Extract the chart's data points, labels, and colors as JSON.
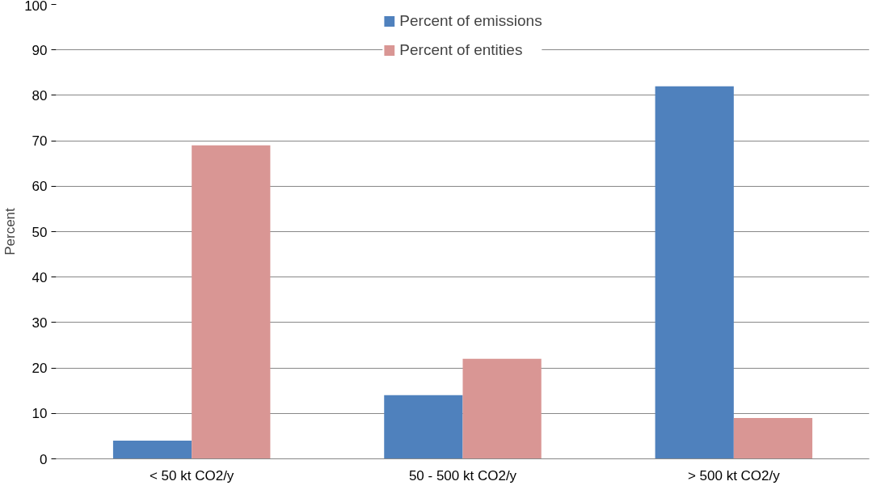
{
  "chart_data": {
    "type": "bar",
    "ylabel": "Percent",
    "categories": [
      "< 50 kt CO2/y",
      "50 - 500 kt CO2/y",
      "> 500 kt CO2/y"
    ],
    "series": [
      {
        "name": "Percent of emissions",
        "color": "#4f81bd",
        "values": [
          4,
          14,
          82
        ]
      },
      {
        "name": "Percent of entities",
        "color": "#d99694",
        "values": [
          69,
          22,
          9
        ]
      }
    ],
    "ylim": [
      0,
      100
    ],
    "yticks": [
      0,
      10,
      20,
      30,
      40,
      50,
      60,
      70,
      80,
      90,
      100
    ],
    "grid": "y",
    "legend": "top"
  }
}
